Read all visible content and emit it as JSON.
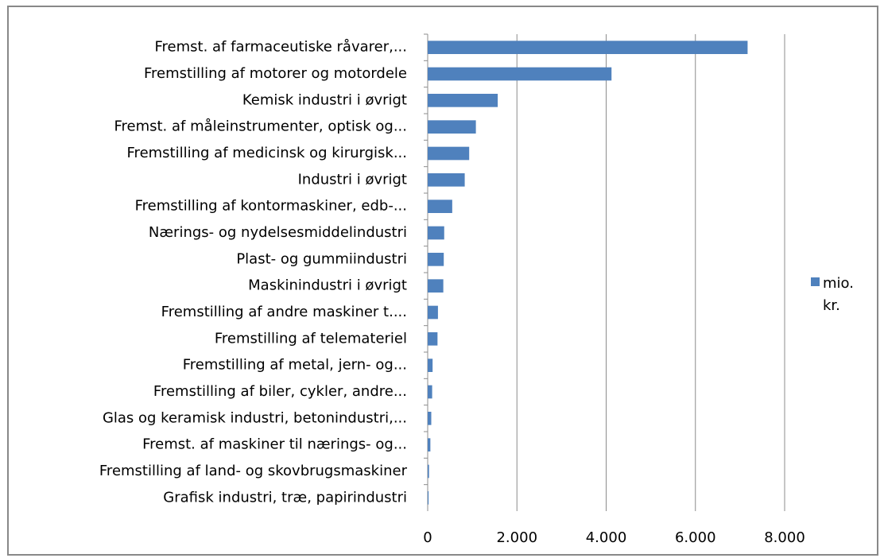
{
  "chart_data": {
    "type": "bar",
    "orientation": "horizontal",
    "categories": [
      "Fremst. af farmaceutiske råvarer,...",
      "Fremstilling af motorer og motordele",
      "Kemisk industri i øvrigt",
      "Fremst. af måleinstrumenter, optisk og...",
      "Fremstilling af medicinsk og kirurgisk...",
      "Industri i øvrigt",
      "Fremstilling af kontormaskiner, edb-...",
      "Nærings- og nydelsesmiddelindustri",
      "Plast- og gummiindustri",
      "Maskinindustri i øvrigt",
      "Fremstilling af andre maskiner t....",
      "Fremstilling af telemateriel",
      "Fremstilling af metal, jern- og...",
      "Fremstilling af biler, cykler, andre...",
      "Glas og keramisk industri, betonindustri,...",
      "Fremst. af maskiner til nærings- og...",
      "Fremstilling af land- og skovbrugsmaskiner",
      "Grafisk industri, træ, papirindustri"
    ],
    "series": [
      {
        "name": "mio. kr.",
        "color": "#4f81bd",
        "values": [
          7170,
          4120,
          1570,
          1080,
          930,
          830,
          550,
          370,
          360,
          350,
          230,
          220,
          110,
          100,
          80,
          60,
          30,
          20
        ]
      }
    ],
    "xlim": [
      0,
      8000
    ],
    "xticks": [
      0,
      {
        "value": 2000,
        "label": "2.000"
      },
      {
        "value": 4000,
        "label": "4.000"
      },
      {
        "value": 6000,
        "label": "6.000"
      },
      {
        "value": 8000,
        "label": "8.000"
      }
    ],
    "grid": true,
    "legend": "right"
  }
}
